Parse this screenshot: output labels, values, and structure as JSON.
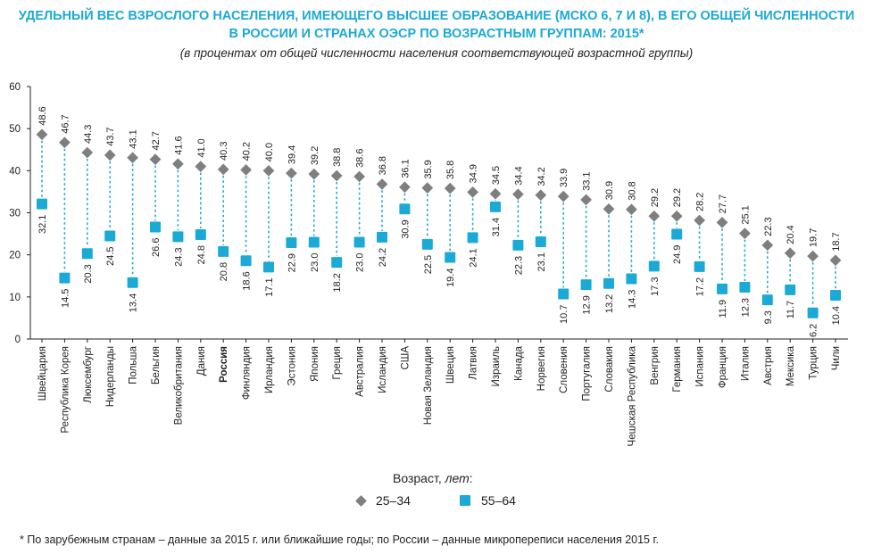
{
  "title_line1": "УДЕЛЬНЫЙ ВЕС ВЗРОСЛОГО НАСЕЛЕНИЯ, ИМЕЮЩЕГО ВЫСШЕЕ ОБРАЗОВАНИЕ (МСКО 6, 7 И 8), В ЕГО ОБЩЕЙ ЧИСЛЕННОСТИ",
  "title_line2": "В РОССИИ И СТРАНАХ ОЭСР ПО ВОЗРАСТНЫМ ГРУППАМ: 2015*",
  "subtitle": "(в процентах от общей численности населения соответствующей возрастной группы)",
  "legend": {
    "title_prefix": "Возраст, ",
    "title_unit": "лет",
    "title_suffix": ":",
    "item1": "25–34",
    "item2": "55–64"
  },
  "footnote": "* По зарубежным странам – данные за 2015 г. или ближайшие годы; по России – данные микропереписи населения 2015 г.",
  "colors": {
    "title": "#1ba9d6",
    "series1": "#7f7f7f",
    "series2": "#1ba9d6",
    "axis": "#231f20"
  },
  "chart_data": {
    "type": "scatter",
    "title": "УДЕЛЬНЫЙ ВЕС ВЗРОСЛОГО НАСЕЛЕНИЯ, ИМЕЮЩЕГО ВЫСШЕЕ ОБРАЗОВАНИЕ (МСКО 6, 7 И 8), В ЕГО ОБЩЕЙ ЧИСЛЕННОСТИ В РОССИИ И СТРАНАХ ОЭСР ПО ВОЗРАСТНЫМ ГРУППАМ: 2015*",
    "ylim": [
      0,
      60
    ],
    "yticks": [
      0,
      10,
      20,
      30,
      40,
      50,
      60
    ],
    "grid": false,
    "legend_position": "bottom-center",
    "highlight_category": "Россия",
    "categories": [
      "Швейцария",
      "Республика Корея",
      "Люксембург",
      "Нидерланды",
      "Польша",
      "Бельгия",
      "Великобритания",
      "Дания",
      "Россия",
      "Финляндия",
      "Ирландия",
      "Эстония",
      "Япония",
      "Греция",
      "Австралия",
      "Исландия",
      "США",
      "Новая Зеландия",
      "Швеция",
      "Латвия",
      "Израиль",
      "Канада",
      "Норвегия",
      "Словения",
      "Португалия",
      "Словакия",
      "Чешская Республика",
      "Венгрия",
      "Германия",
      "Испания",
      "Франция",
      "Италия",
      "Австрия",
      "Мексика",
      "Турция",
      "Чили"
    ],
    "series": [
      {
        "name": "25–34",
        "marker": "diamond",
        "values": [
          48.6,
          46.7,
          44.3,
          43.7,
          43.1,
          42.7,
          41.6,
          41.0,
          40.3,
          40.2,
          40.0,
          39.4,
          39.2,
          38.8,
          38.6,
          36.8,
          36.1,
          35.9,
          35.8,
          34.9,
          34.5,
          34.4,
          34.2,
          33.9,
          33.1,
          30.9,
          30.8,
          29.2,
          29.2,
          28.2,
          27.7,
          25.1,
          22.3,
          20.4,
          19.7,
          18.7
        ]
      },
      {
        "name": "55–64",
        "marker": "square",
        "values": [
          32.1,
          14.5,
          20.3,
          24.5,
          13.4,
          26.6,
          24.3,
          24.8,
          20.8,
          18.6,
          17.1,
          22.9,
          23.0,
          18.2,
          23.0,
          24.2,
          30.9,
          22.5,
          19.4,
          24.1,
          31.4,
          22.3,
          23.1,
          10.7,
          12.9,
          13.2,
          14.3,
          17.3,
          24.9,
          17.2,
          11.9,
          12.3,
          9.3,
          11.7,
          6.2,
          10.4
        ]
      }
    ]
  }
}
